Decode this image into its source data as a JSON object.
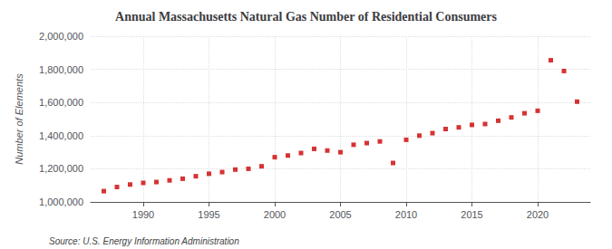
{
  "chart_data": {
    "type": "scatter",
    "title": "Annual Massachusetts Natural Gas Number of Residential Consumers",
    "ylabel": "Number of Elements",
    "annotations": [
      "Source: U.S. Energy Information Administration"
    ],
    "x": [
      1987,
      1988,
      1989,
      1990,
      1991,
      1992,
      1993,
      1994,
      1995,
      1996,
      1997,
      1998,
      1999,
      2000,
      2001,
      2002,
      2003,
      2004,
      2005,
      2006,
      2007,
      2008,
      2009,
      2010,
      2011,
      2012,
      2013,
      2014,
      2015,
      2016,
      2017,
      2018,
      2019,
      2020,
      2021,
      2022,
      2023
    ],
    "values": [
      1065000,
      1090000,
      1105000,
      1115000,
      1120000,
      1130000,
      1140000,
      1155000,
      1170000,
      1180000,
      1195000,
      1200000,
      1215000,
      1270000,
      1280000,
      1295000,
      1320000,
      1310000,
      1300000,
      1345000,
      1355000,
      1365000,
      1235000,
      1375000,
      1400000,
      1415000,
      1440000,
      1450000,
      1465000,
      1470000,
      1490000,
      1510000,
      1535000,
      1550000,
      1855000,
      1790000,
      1605000
    ],
    "color": "#cc0000",
    "marker": "square",
    "xlim": [
      1986,
      2024
    ],
    "xticks": [
      1990,
      1995,
      2000,
      2005,
      2010,
      2015,
      2020
    ],
    "ylim": [
      1000000,
      2000000
    ],
    "yticks": [
      {
        "value": 1000000,
        "label": "1,000,000"
      },
      {
        "value": 1200000,
        "label": "1,200,000"
      },
      {
        "value": 1400000,
        "label": "1,400,000"
      },
      {
        "value": 1600000,
        "label": "1,600,000"
      },
      {
        "value": 1800000,
        "label": "1,800,000"
      },
      {
        "value": 2000000,
        "label": "2,000,000"
      }
    ],
    "grid": true
  }
}
